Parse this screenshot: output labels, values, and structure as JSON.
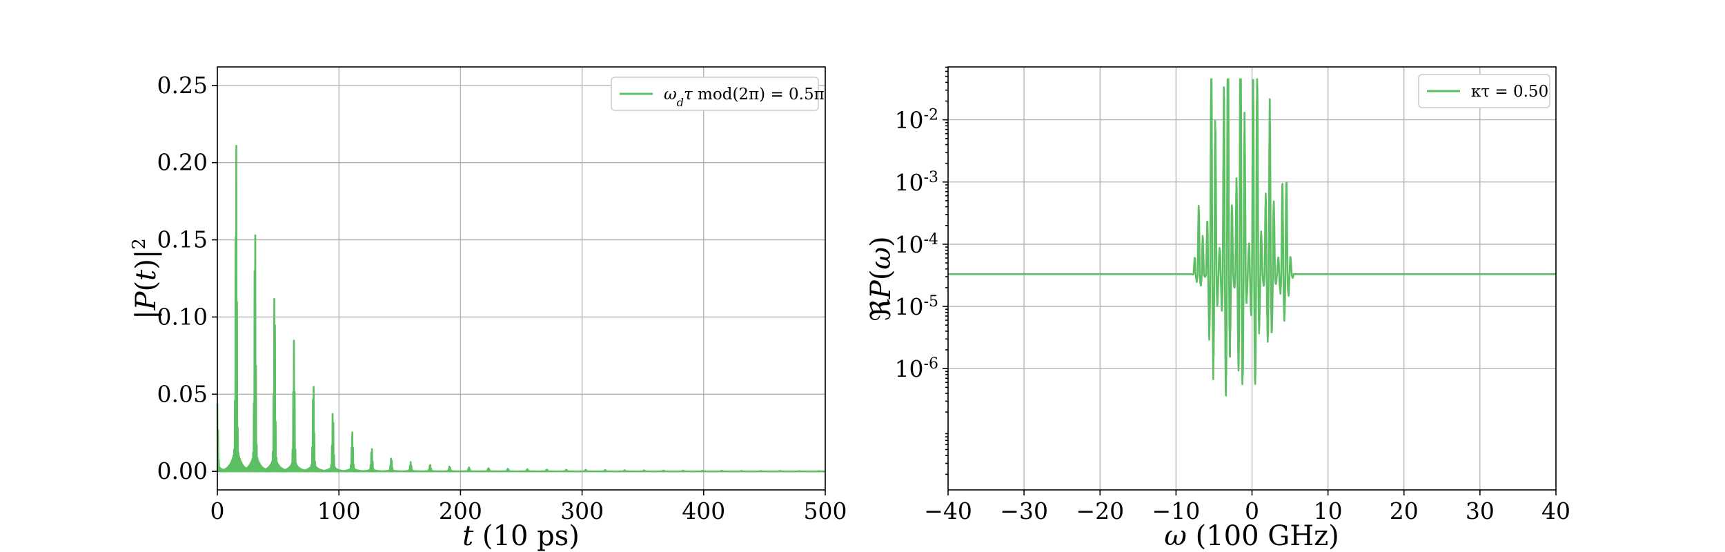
{
  "chart_data": [
    {
      "type": "line",
      "xlabel": "t (10 ps)",
      "ylabel": "|P(t)|²",
      "xlim": [
        0,
        500
      ],
      "ylim": [
        -0.012,
        0.262
      ],
      "xticks": [
        "0",
        "100",
        "200",
        "300",
        "400",
        "500"
      ],
      "yticks": [
        "0.00",
        "0.05",
        "0.10",
        "0.15",
        "0.20",
        "0.25"
      ],
      "grid": true,
      "legend_position": "top-right",
      "series": [
        {
          "name": "ω_d τ mod(2π) = 0.5π",
          "color": "#5dbf63",
          "pulse_period": 16,
          "pulse_times": [
            0,
            15.5,
            31,
            47,
            63,
            79,
            95,
            111,
            127,
            143,
            159,
            175,
            191,
            207,
            223,
            239,
            255,
            271,
            287,
            303,
            319,
            335,
            351,
            367,
            383,
            399,
            415,
            431,
            447,
            463,
            479,
            495
          ],
          "pulse_peaks": [
            0.04,
            0.195,
            0.148,
            0.108,
            0.077,
            0.053,
            0.036,
            0.023,
            0.014,
            0.008,
            0.0055,
            0.004,
            0.003,
            0.0024,
            0.002,
            0.0016,
            0.0013,
            0.0011,
            0.001,
            0.0009,
            0.0008,
            0.0007,
            0.0006,
            0.0005,
            0.0005,
            0.0004,
            0.0004,
            0.0003,
            0.0003,
            0.0003,
            0.0002,
            0.0002
          ]
        }
      ]
    },
    {
      "type": "line",
      "xlabel": "ω (100 GHz)",
      "ylabel": "ℜP(ω)",
      "xlim": [
        -40,
        40
      ],
      "ylim_log10": [
        -7.95,
        -1.15
      ],
      "yscale": "log",
      "xticks": [
        "−40",
        "−30",
        "−20",
        "−10",
        "0",
        "10",
        "20",
        "30",
        "40"
      ],
      "yticks": [
        {
          "base": "10",
          "exp": "-6",
          "log10": -6
        },
        {
          "base": "10",
          "exp": "-5",
          "log10": -5
        },
        {
          "base": "10",
          "exp": "-4",
          "log10": -4
        },
        {
          "base": "10",
          "exp": "-3",
          "log10": -3
        },
        {
          "base": "10",
          "exp": "-2",
          "log10": -2
        }
      ],
      "grid": true,
      "legend_position": "top-right",
      "series": [
        {
          "name": "κτ = 0.50",
          "color": "#5dbf63",
          "baseline": 3.3e-05,
          "band": [
            -8,
            5.5
          ],
          "peak_max": 0.045,
          "trough_min": 2e-07
        }
      ]
    }
  ]
}
